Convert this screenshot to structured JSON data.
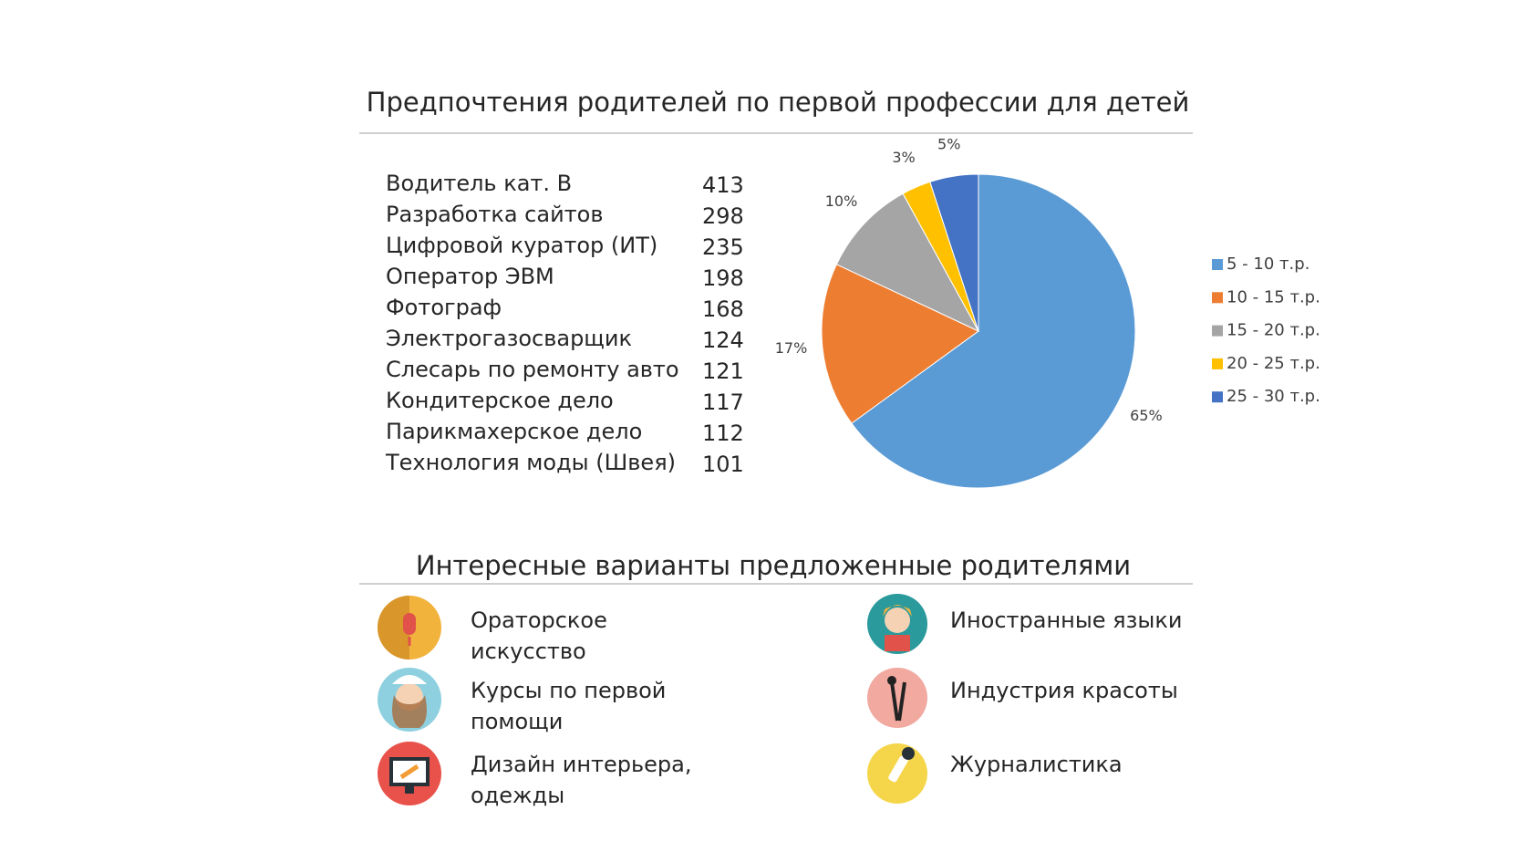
{
  "title": "Предпочтения родителей по первой профессии для детей",
  "table": {
    "rows": [
      [
        "Водитель кат. В",
        413
      ],
      [
        "Разработка сайтов",
        298
      ],
      [
        "Цифровой куратор (ИТ)",
        235
      ],
      [
        "Оператор ЭВМ",
        198
      ],
      [
        "Фотограф",
        168
      ],
      [
        "Электрогазосварщик",
        124
      ],
      [
        "Слесарь по ремонту авто",
        121
      ],
      [
        "Кондитерское дело",
        117
      ],
      [
        "Парикмахерское дело",
        112
      ],
      [
        "Технология моды (Швея)",
        101
      ]
    ]
  },
  "chart_data": {
    "type": "pie",
    "categories": [
      "5 - 10 т.р.",
      "10 - 15 т.р.",
      "15 - 20 т.р.",
      "20 - 25 т.р.",
      "25 - 30 т.р."
    ],
    "values": [
      65,
      17,
      10,
      3,
      5
    ],
    "value_labels": [
      "65%",
      "17%",
      "10%",
      "3%",
      "5%"
    ],
    "colors": [
      "#5b9bd5",
      "#ed7d31",
      "#a5a5a5",
      "#ffc000",
      "#4472c4"
    ],
    "legend": "right"
  },
  "section": {
    "title": "Интересные варианты предложенные родителями",
    "items": [
      {
        "lines": [
          "Ораторское",
          "искусство"
        ]
      },
      {
        "lines": [
          "Иностранные языки"
        ]
      },
      {
        "lines": [
          "Курсы по первой",
          "помощи"
        ]
      },
      {
        "lines": [
          "Индустрия красоты"
        ]
      },
      {
        "lines": [
          "Дизайн интерьера,",
          "одежды"
        ]
      },
      {
        "lines": [
          "Журналистика"
        ]
      }
    ]
  }
}
